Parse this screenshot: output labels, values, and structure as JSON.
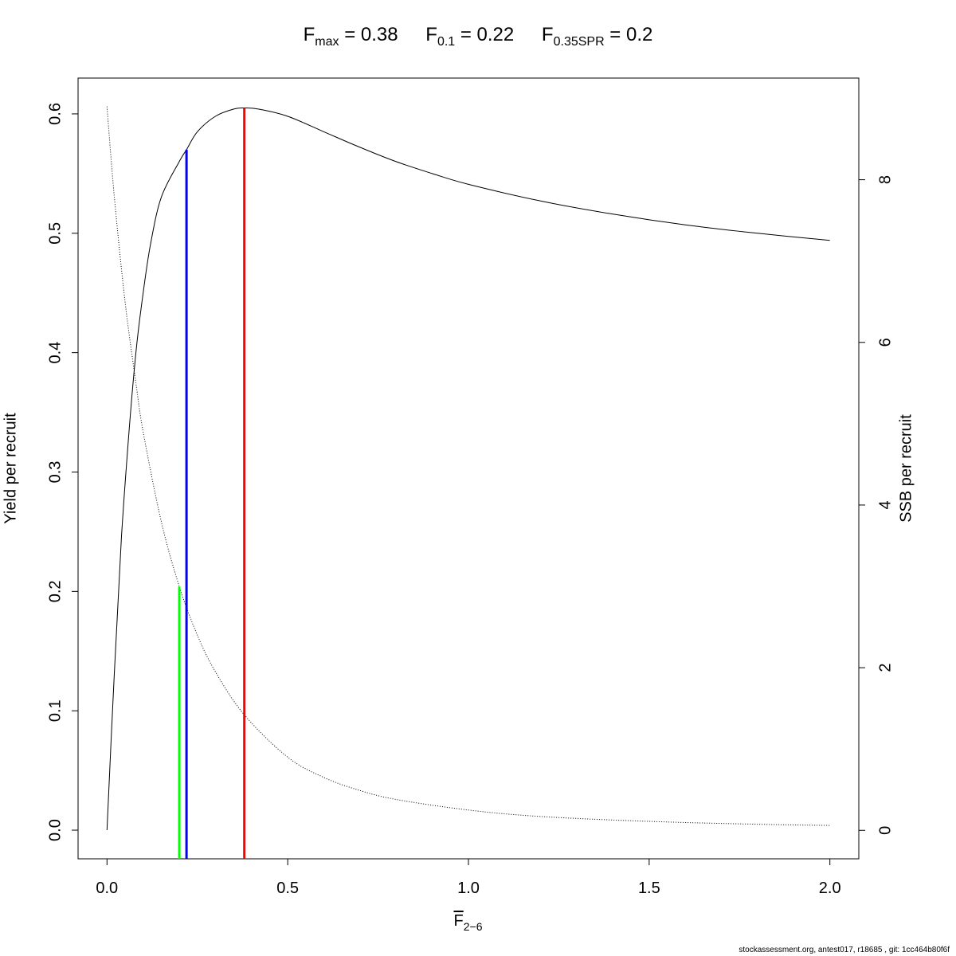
{
  "title": {
    "fmax": {
      "base": "F",
      "sub": "max",
      "value": " = 0.38"
    },
    "f01": {
      "base": "F",
      "sub": "0.1",
      "value": " = 0.22"
    },
    "f035": {
      "base": "F",
      "sub": "0.35SPR",
      "value": " = 0.2"
    }
  },
  "xlabel": {
    "base": "F",
    "sub": "2−6"
  },
  "ylabel_left": "Yield per recruit",
  "ylabel_right": "SSB per recruit",
  "footer": "stockassessment.org, antest017, r18685 , git: 1cc464b80f6f",
  "colors": {
    "fmax": "#ff0000",
    "f01": "#0000ff",
    "f035": "#00ff00",
    "curve": "#000000"
  },
  "chart_data": {
    "type": "line",
    "xlim": [
      -0.08,
      2.08
    ],
    "ylim_left": [
      -0.024,
      0.63
    ],
    "ylim_right": [
      -0.35,
      9.25
    ],
    "x_ticks": [
      0.0,
      0.5,
      1.0,
      1.5,
      2.0
    ],
    "x_tick_labels": [
      "0.0",
      "0.5",
      "1.0",
      "1.5",
      "2.0"
    ],
    "y_left_ticks": [
      0.0,
      0.1,
      0.2,
      0.3,
      0.4,
      0.5,
      0.6
    ],
    "y_left_tick_labels": [
      "0.0",
      "0.1",
      "0.2",
      "0.3",
      "0.4",
      "0.5",
      "0.6"
    ],
    "y_right_ticks": [
      0,
      2,
      4,
      6,
      8
    ],
    "y_right_tick_labels": [
      "0",
      "2",
      "4",
      "6",
      "8"
    ],
    "series": [
      {
        "axis": "left",
        "style": "solid",
        "x": [
          0.0,
          0.02,
          0.04,
          0.06,
          0.08,
          0.1,
          0.12,
          0.15,
          0.2,
          0.22,
          0.25,
          0.3,
          0.35,
          0.38,
          0.42,
          0.5,
          0.6,
          0.7,
          0.8,
          0.9,
          1.0,
          1.2,
          1.4,
          1.6,
          1.8,
          2.0
        ],
        "y": [
          0.0,
          0.13,
          0.245,
          0.33,
          0.4,
          0.45,
          0.49,
          0.53,
          0.56,
          0.57,
          0.585,
          0.598,
          0.604,
          0.605,
          0.604,
          0.598,
          0.585,
          0.572,
          0.56,
          0.55,
          0.541,
          0.527,
          0.516,
          0.507,
          0.5,
          0.494
        ]
      },
      {
        "axis": "right",
        "style": "dotted",
        "x": [
          0.0,
          0.02,
          0.05,
          0.08,
          0.1,
          0.15,
          0.2,
          0.25,
          0.3,
          0.38,
          0.5,
          0.6,
          0.7,
          0.8,
          1.0,
          1.2,
          1.5,
          1.8,
          2.0
        ],
        "y": [
          8.9,
          7.8,
          6.5,
          5.5,
          4.9,
          3.8,
          3.0,
          2.4,
          1.95,
          1.42,
          0.9,
          0.65,
          0.49,
          0.38,
          0.25,
          0.17,
          0.11,
          0.075,
          0.06
        ]
      }
    ],
    "reference_lines": [
      {
        "name": "F0.35SPR",
        "x": 0.2,
        "y_top": 0.204,
        "color": "#00ff00"
      },
      {
        "name": "F0.1",
        "x": 0.22,
        "y_top": 0.57,
        "color": "#0000ff"
      },
      {
        "name": "Fmax",
        "x": 0.38,
        "y_top": 0.605,
        "color": "#ff0000"
      }
    ]
  }
}
